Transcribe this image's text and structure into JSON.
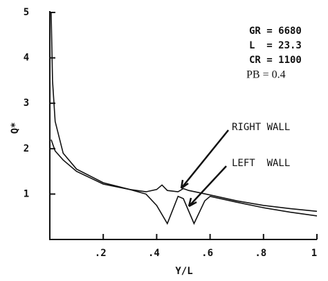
{
  "chart_data": {
    "type": "line",
    "xlabel": "Y/L",
    "ylabel": "Q*",
    "annotations": [
      "GR = 6680",
      "L  = 23.3",
      "CR = 1100",
      "PB = 0.4"
    ],
    "xlim": [
      0,
      1
    ],
    "ylim": [
      0,
      5
    ],
    "xticks": [
      {
        "value": 0.2,
        "label": ".2"
      },
      {
        "value": 0.4,
        "label": ".4"
      },
      {
        "value": 0.6,
        "label": ".6"
      },
      {
        "value": 0.8,
        "label": ".8"
      },
      1
    ],
    "yticks": [
      1,
      2,
      3,
      4,
      5
    ],
    "series": [
      {
        "name": "RIGHT WALL",
        "color": "#111111",
        "x": [
          0.005,
          0.01,
          0.02,
          0.05,
          0.1,
          0.2,
          0.3,
          0.36,
          0.4,
          0.42,
          0.44,
          0.48,
          0.5,
          0.52,
          0.6,
          0.7,
          0.8,
          0.9,
          1.0
        ],
        "values": [
          5,
          3.5,
          2.6,
          1.9,
          1.55,
          1.25,
          1.1,
          1.05,
          1.1,
          1.2,
          1.08,
          1.05,
          1.12,
          1.08,
          0.98,
          0.85,
          0.75,
          0.68,
          0.62
        ]
      },
      {
        "name": "LEFT  WALL",
        "color": "#111111",
        "x": [
          0.005,
          0.02,
          0.05,
          0.1,
          0.2,
          0.3,
          0.36,
          0.4,
          0.44,
          0.48,
          0.5,
          0.54,
          0.58,
          0.6,
          0.7,
          0.8,
          0.9,
          1.0
        ],
        "values": [
          2.2,
          1.95,
          1.75,
          1.5,
          1.22,
          1.1,
          1.0,
          0.75,
          0.35,
          0.95,
          0.9,
          0.35,
          0.85,
          0.95,
          0.82,
          0.7,
          0.6,
          0.52
        ]
      }
    ]
  }
}
